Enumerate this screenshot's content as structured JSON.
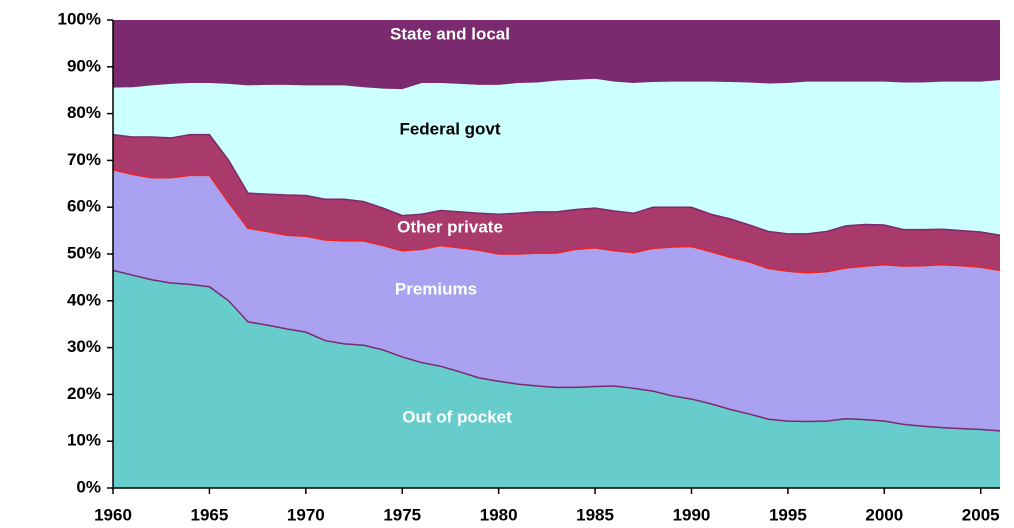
{
  "chart_data": {
    "type": "stacked_area",
    "x": [
      1960,
      1961,
      1962,
      1963,
      1964,
      1965,
      1966,
      1967,
      1968,
      1969,
      1970,
      1971,
      1972,
      1973,
      1974,
      1975,
      1976,
      1977,
      1978,
      1979,
      1980,
      1981,
      1982,
      1983,
      1984,
      1985,
      1986,
      1987,
      1988,
      1989,
      1990,
      1991,
      1992,
      1993,
      1994,
      1995,
      1996,
      1997,
      1998,
      1999,
      2000,
      2001,
      2002,
      2003,
      2004,
      2005,
      2006
    ],
    "series": [
      {
        "name": "Out of pocket",
        "color": "#66cccc",
        "values": [
          46.5,
          45.5,
          44.5,
          43.8,
          43.5,
          43,
          40,
          35.5,
          34.8,
          34,
          33.3,
          31.5,
          30.8,
          30.5,
          29.5,
          28,
          26.8,
          26,
          24.8,
          23.5,
          22.8,
          22.2,
          21.8,
          21.5,
          21.5,
          21.7,
          21.8,
          21.3,
          20.7,
          19.7,
          19,
          18,
          16.8,
          15.8,
          14.7,
          14.3,
          14.2,
          14.3,
          14.8,
          14.6,
          14.3,
          13.6,
          13.2,
          12.9,
          12.7,
          12.5,
          12.2
        ]
      },
      {
        "name": "Premiums",
        "color": "#aaa2f0",
        "values": [
          21.5,
          21.5,
          21.8,
          22.5,
          23.3,
          23.8,
          21,
          20,
          20,
          20,
          20.5,
          21.5,
          22,
          22.3,
          22.3,
          22.7,
          24.2,
          25.8,
          26.5,
          27.3,
          27.2,
          27.8,
          28.4,
          28.7,
          29.5,
          29.6,
          28.9,
          29,
          30.5,
          31.8,
          32.6,
          32.5,
          32.5,
          32.5,
          32.2,
          32,
          31.8,
          31.9,
          32.2,
          32.8,
          33.4,
          33.8,
          34.3,
          34.8,
          34.8,
          34.7,
          34.3
        ]
      },
      {
        "name": "Other private",
        "color": "#a93a6c",
        "values": [
          7.5,
          8,
          8.7,
          8.5,
          8.7,
          8.7,
          9,
          7.5,
          8,
          8.6,
          8.7,
          8.7,
          8.9,
          8.4,
          8,
          7.5,
          7.5,
          7.5,
          7.7,
          7.9,
          8.5,
          8.7,
          8.8,
          8.8,
          8.5,
          8.5,
          8.5,
          8.4,
          8.8,
          8.5,
          8.4,
          8,
          8.2,
          7.9,
          7.9,
          8,
          8.3,
          8.6,
          9,
          8.9,
          8.5,
          7.8,
          7.7,
          7.6,
          7.5,
          7.5,
          7.5
        ]
      },
      {
        "name": "Federal govt",
        "color": "#ccffff",
        "values": [
          10.2,
          10.8,
          11.2,
          11.7,
          11.2,
          11.2,
          16.5,
          23.2,
          23.5,
          23.7,
          23.7,
          24.5,
          24.5,
          24.6,
          25.7,
          27.2,
          28.2,
          27.4,
          27.5,
          27.6,
          27.8,
          28,
          27.8,
          28.2,
          27.9,
          27.8,
          27.8,
          28,
          26.9,
          27,
          27,
          28.5,
          29.4,
          30.6,
          31.8,
          32.4,
          32.7,
          32.2,
          31,
          30.7,
          30.8,
          31.6,
          31.6,
          31.7,
          32,
          32.3,
          33.3
        ]
      },
      {
        "name": "State and local",
        "color": "#7b2a6f",
        "values": [
          14.3,
          14.2,
          13.8,
          13.5,
          13.3,
          13.3,
          13.5,
          13.8,
          13.7,
          13.7,
          13.8,
          13.8,
          13.8,
          14.2,
          14.5,
          14.6,
          13.3,
          13.3,
          13.5,
          13.7,
          13.7,
          13.3,
          13.2,
          12.8,
          12.6,
          12.4,
          13,
          13.3,
          13.1,
          13,
          13,
          13,
          13.1,
          13.2,
          13.4,
          13.3,
          13,
          13,
          13,
          13,
          13,
          13.2,
          13.2,
          13,
          13,
          13,
          12.7
        ]
      }
    ],
    "xlim": [
      1960,
      2006
    ],
    "xticks": [
      1960,
      1965,
      1970,
      1975,
      1980,
      1985,
      1990,
      1995,
      2000,
      2005
    ],
    "ylim": [
      0,
      100
    ],
    "yticks": [
      {
        "value": 0,
        "label": "0%"
      },
      {
        "value": 10,
        "label": "10%"
      },
      {
        "value": 20,
        "label": "20%"
      },
      {
        "value": 30,
        "label": "30%"
      },
      {
        "value": 40,
        "label": "40%"
      },
      {
        "value": 50,
        "label": "50%"
      },
      {
        "value": 60,
        "label": "60%"
      },
      {
        "value": 70,
        "label": "70%"
      },
      {
        "value": 80,
        "label": "80%"
      },
      {
        "value": 90,
        "label": "90%"
      },
      {
        "value": 100,
        "label": "100%"
      }
    ]
  }
}
